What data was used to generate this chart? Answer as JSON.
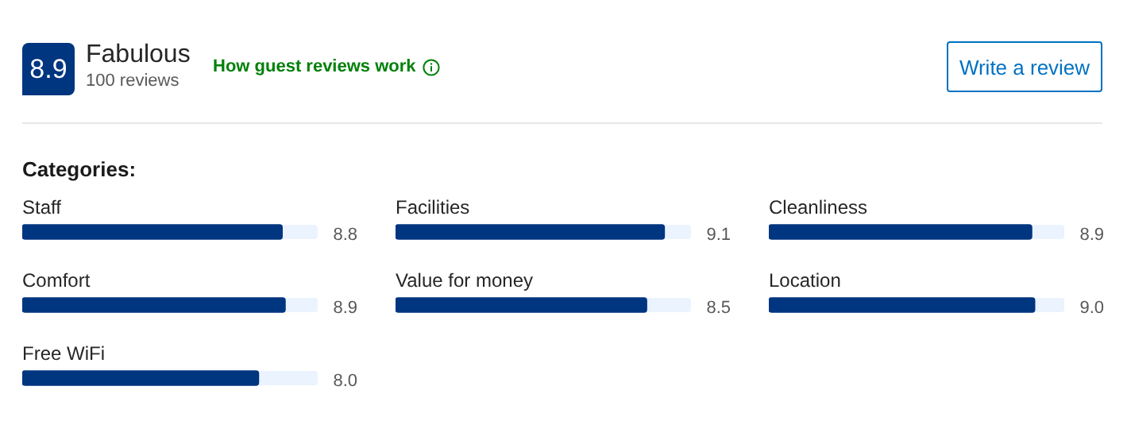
{
  "chart_data": [
    {
      "type": "other",
      "annotations": [
        "8.9",
        "Fabulous",
        "100 reviews",
        "How guest reviews work",
        "Write a review",
        "Categories:"
      ]
    },
    {
      "type": "bar",
      "orientation": "horizontal",
      "categories": [
        "Staff",
        "Comfort",
        "Free WiFi"
      ],
      "values": [
        8.8,
        8.9,
        8.0
      ],
      "value_labels": [
        "8.8",
        "8.9",
        "8.0"
      ],
      "color": "#003580",
      "xlim": [
        0,
        10
      ],
      "tick_labels": false
    },
    {
      "type": "bar",
      "orientation": "horizontal",
      "categories": [
        "Facilities",
        "Value for money"
      ],
      "values": [
        9.1,
        8.5
      ],
      "value_labels": [
        "9.1",
        "8.5"
      ],
      "color": "#003580",
      "xlim": [
        0,
        10
      ],
      "tick_labels": false
    },
    {
      "type": "bar",
      "orientation": "horizontal",
      "categories": [
        "Cleanliness",
        "Location"
      ],
      "values": [
        8.9,
        9.0
      ],
      "value_labels": [
        "8.9",
        "9.0"
      ],
      "color": "#003580",
      "xlim": [
        0,
        10
      ],
      "tick_labels": false
    }
  ]
}
